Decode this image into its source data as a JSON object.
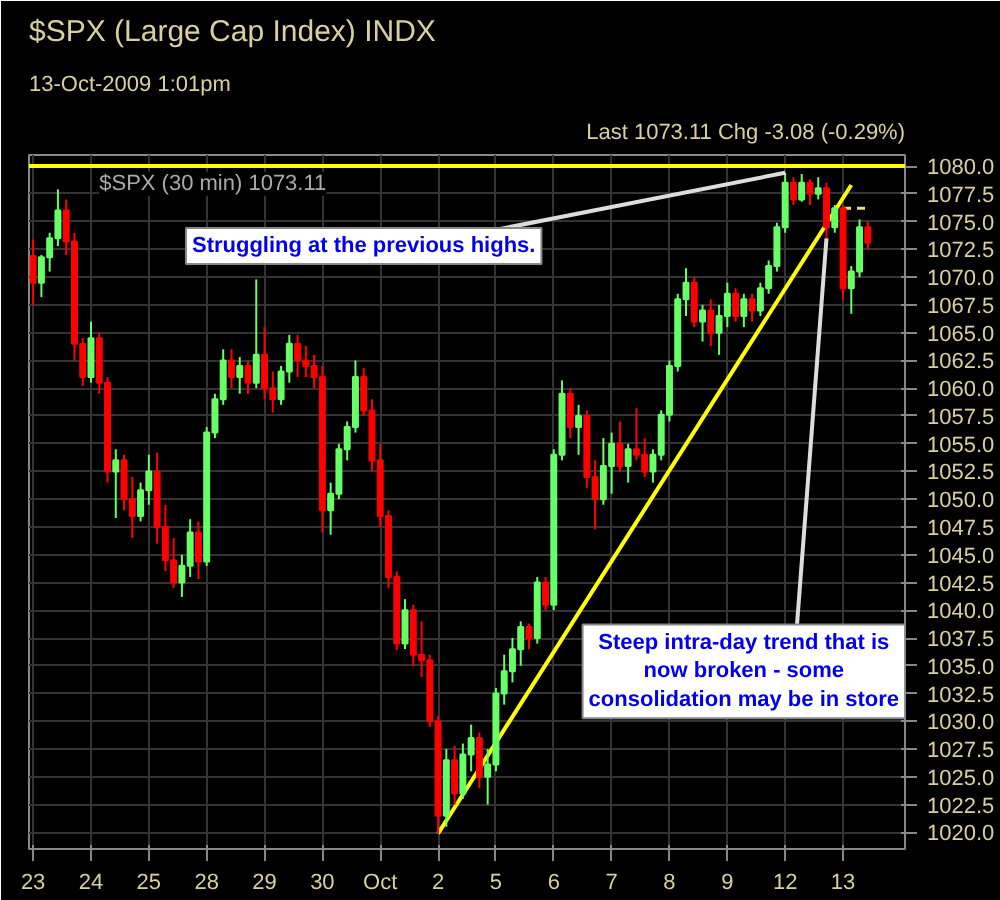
{
  "chart_data": {
    "type": "candlestick",
    "title": "$SPX (Large Cap Index) INDX",
    "subtitle": "13-Oct-2009 1:01pm",
    "annotations": [
      "Last 1073.11 Chg -3.08 (-0.29%)",
      "$SPX (30 min) 1073.11",
      "Struggling at the previous highs.",
      "Steep intra-day trend that is now broken - some consolidation may be in store"
    ],
    "categories": [
      "23",
      null,
      null,
      null,
      null,
      null,
      null,
      "24",
      null,
      null,
      null,
      null,
      null,
      null,
      "25",
      null,
      null,
      null,
      null,
      null,
      null,
      "28",
      null,
      null,
      null,
      null,
      null,
      null,
      "29",
      null,
      null,
      null,
      null,
      null,
      null,
      "30",
      null,
      null,
      null,
      null,
      null,
      null,
      "Oct",
      null,
      null,
      null,
      null,
      null,
      null,
      "2",
      null,
      null,
      null,
      null,
      null,
      null,
      "5",
      null,
      null,
      null,
      null,
      null,
      null,
      "6",
      null,
      null,
      null,
      null,
      null,
      null,
      "7",
      null,
      null,
      null,
      null,
      null,
      null,
      "8",
      null,
      null,
      null,
      null,
      null,
      null,
      "9",
      null,
      null,
      null,
      null,
      null,
      null,
      "12",
      null,
      null,
      null,
      null,
      null,
      null,
      "13",
      null,
      null,
      null
    ],
    "ohlc": [
      [
        1071.9,
        1073.4,
        1067.5,
        1069.5
      ],
      [
        1069.5,
        1072.0,
        1068.2,
        1071.8
      ],
      [
        1071.8,
        1074.0,
        1070.5,
        1073.5
      ],
      [
        1073.5,
        1077.9,
        1072.8,
        1076.0
      ],
      [
        1076.0,
        1077.0,
        1072.0,
        1073.2
      ],
      [
        1073.2,
        1074.0,
        1062.5,
        1064.0
      ],
      [
        1064.0,
        1064.5,
        1060.2,
        1061.0
      ],
      [
        1061.0,
        1066.0,
        1060.5,
        1064.5
      ],
      [
        1064.5,
        1065.0,
        1059.5,
        1060.5
      ],
      [
        1060.5,
        1061.0,
        1051.5,
        1052.5
      ],
      [
        1052.5,
        1054.5,
        1048.3,
        1053.5
      ],
      [
        1053.5,
        1054.0,
        1049.0,
        1050.0
      ],
      [
        1050.0,
        1052.0,
        1046.5,
        1048.5
      ],
      [
        1048.5,
        1051.5,
        1048.0,
        1050.8
      ],
      [
        1050.8,
        1054.0,
        1049.5,
        1052.5
      ],
      [
        1052.5,
        1054.2,
        1046.0,
        1047.5
      ],
      [
        1047.5,
        1049.5,
        1043.5,
        1044.5
      ],
      [
        1044.5,
        1046.5,
        1042.0,
        1042.5
      ],
      [
        1042.5,
        1045.0,
        1041.2,
        1044.0
      ],
      [
        1044.0,
        1048.2,
        1043.0,
        1047.0
      ],
      [
        1047.0,
        1048.0,
        1042.8,
        1044.4
      ],
      [
        1044.4,
        1056.5,
        1044.0,
        1056.0
      ],
      [
        1056.0,
        1059.5,
        1055.5,
        1059.0
      ],
      [
        1059.0,
        1063.5,
        1058.5,
        1062.5
      ],
      [
        1062.5,
        1063.5,
        1060.0,
        1061.0
      ],
      [
        1061.0,
        1062.8,
        1059.5,
        1062.0
      ],
      [
        1062.0,
        1062.5,
        1059.5,
        1060.5
      ],
      [
        1060.5,
        1069.8,
        1060.0,
        1063.0
      ],
      [
        1063.0,
        1065.5,
        1059.0,
        1060.0
      ],
      [
        1060.0,
        1061.5,
        1057.8,
        1059.0
      ],
      [
        1059.0,
        1062.0,
        1058.5,
        1061.5
      ],
      [
        1061.5,
        1064.8,
        1060.5,
        1064.0
      ],
      [
        1064.0,
        1064.8,
        1061.0,
        1062.5
      ],
      [
        1062.5,
        1063.8,
        1061.0,
        1062.0
      ],
      [
        1062.0,
        1063.0,
        1060.0,
        1061.0
      ],
      [
        1061.0,
        1062.0,
        1047.0,
        1049.0
      ],
      [
        1049.0,
        1051.5,
        1046.8,
        1050.5
      ],
      [
        1050.5,
        1055.0,
        1050.0,
        1054.5
      ],
      [
        1054.5,
        1057.0,
        1053.5,
        1056.5
      ],
      [
        1056.5,
        1062.5,
        1056.0,
        1061.0
      ],
      [
        1061.0,
        1061.8,
        1057.5,
        1058.0
      ],
      [
        1058.0,
        1059.0,
        1052.5,
        1053.5
      ],
      [
        1053.5,
        1055.0,
        1047.5,
        1048.5
      ],
      [
        1048.5,
        1049.0,
        1042.0,
        1043.0
      ],
      [
        1043.0,
        1043.5,
        1036.4,
        1037.0
      ],
      [
        1037.0,
        1041.0,
        1036.5,
        1040.0
      ],
      [
        1040.0,
        1040.5,
        1035.0,
        1036.0
      ],
      [
        1036.0,
        1039.0,
        1034.0,
        1035.5
      ],
      [
        1035.5,
        1036.0,
        1029.5,
        1030.0
      ],
      [
        1030.0,
        1030.5,
        1019.9,
        1021.5
      ],
      [
        1021.5,
        1027.5,
        1020.5,
        1026.5
      ],
      [
        1026.5,
        1027.8,
        1022.5,
        1023.5
      ],
      [
        1023.5,
        1028.0,
        1023.0,
        1027.0
      ],
      [
        1027.0,
        1029.7,
        1025.5,
        1028.5
      ],
      [
        1028.5,
        1029.0,
        1024.0,
        1025.0
      ],
      [
        1025.0,
        1027.5,
        1022.5,
        1026.1
      ],
      [
        1026.1,
        1033.0,
        1025.5,
        1032.5
      ],
      [
        1032.5,
        1036.0,
        1031.5,
        1034.5
      ],
      [
        1034.5,
        1037.5,
        1033.5,
        1036.5
      ],
      [
        1036.5,
        1039.0,
        1035.0,
        1038.5
      ],
      [
        1038.5,
        1038.8,
        1036.5,
        1037.5
      ],
      [
        1037.5,
        1043.0,
        1037.0,
        1042.5
      ],
      [
        1042.5,
        1043.0,
        1040.0,
        1040.5
      ],
      [
        1040.5,
        1054.5,
        1040.0,
        1054.0
      ],
      [
        1054.0,
        1060.7,
        1053.5,
        1059.5
      ],
      [
        1059.5,
        1060.0,
        1055.5,
        1056.5
      ],
      [
        1056.5,
        1058.5,
        1054.0,
        1057.5
      ],
      [
        1057.5,
        1058.0,
        1051.0,
        1052.0
      ],
      [
        1052.0,
        1053.5,
        1047.3,
        1050.0
      ],
      [
        1050.0,
        1055.5,
        1049.5,
        1053.0
      ],
      [
        1053.0,
        1056.0,
        1050.5,
        1055.0
      ],
      [
        1055.0,
        1057.0,
        1052.5,
        1053.0
      ],
      [
        1053.0,
        1055.0,
        1051.5,
        1054.5
      ],
      [
        1054.5,
        1058.2,
        1053.5,
        1054.0
      ],
      [
        1054.0,
        1055.5,
        1052.0,
        1052.5
      ],
      [
        1052.5,
        1054.5,
        1051.5,
        1054.0
      ],
      [
        1054.0,
        1058.0,
        1053.5,
        1057.6
      ],
      [
        1057.6,
        1062.5,
        1057.0,
        1062.0
      ],
      [
        1062.0,
        1068.5,
        1061.5,
        1068.0
      ],
      [
        1068.0,
        1070.8,
        1066.5,
        1069.5
      ],
      [
        1069.5,
        1070.0,
        1065.5,
        1066.0
      ],
      [
        1066.0,
        1067.5,
        1064.2,
        1067.0
      ],
      [
        1067.0,
        1068.0,
        1063.8,
        1065.0
      ],
      [
        1065.0,
        1067.5,
        1063.0,
        1066.5
      ],
      [
        1066.5,
        1069.5,
        1065.5,
        1068.5
      ],
      [
        1068.5,
        1069.0,
        1066.0,
        1066.5
      ],
      [
        1066.5,
        1068.5,
        1065.5,
        1068.0
      ],
      [
        1068.0,
        1068.5,
        1066.0,
        1067.0
      ],
      [
        1067.0,
        1069.5,
        1066.5,
        1069.0
      ],
      [
        1069.0,
        1071.5,
        1068.5,
        1071.0
      ],
      [
        1071.0,
        1074.9,
        1070.5,
        1074.5
      ],
      [
        1074.5,
        1079.4,
        1074.0,
        1078.5
      ],
      [
        1078.5,
        1079.0,
        1076.5,
        1077.0
      ],
      [
        1077.0,
        1079.3,
        1076.8,
        1078.5
      ],
      [
        1078.5,
        1078.8,
        1076.5,
        1077.5
      ],
      [
        1077.5,
        1079.0,
        1077.0,
        1078.0
      ],
      [
        1078.0,
        1078.5,
        1073.5,
        1074.5
      ],
      [
        1074.5,
        1076.5,
        1074.0,
        1076.2
      ],
      [
        1076.2,
        1076.5,
        1068.0,
        1069.0
      ],
      [
        1069.0,
        1071.0,
        1066.7,
        1070.5
      ],
      [
        1070.5,
        1075.2,
        1070.0,
        1074.5
      ],
      [
        1074.5,
        1075.0,
        1072.5,
        1073.1
      ]
    ],
    "colors": [
      "#ff0000",
      "#66ff66",
      "#66ff66",
      "#66ff66",
      "#ff0000",
      "#ff0000",
      "#ff0000",
      "#66ff66",
      "#ff0000",
      "#ff0000",
      "#66ff66",
      "#ff0000",
      "#ff0000",
      "#66ff66",
      "#66ff66",
      "#ff0000",
      "#ff0000",
      "#ff0000",
      "#66ff66",
      "#66ff66",
      "#ff0000",
      "#66ff66",
      "#66ff66",
      "#66ff66",
      "#ff0000",
      "#66ff66",
      "#ff0000",
      "#66ff66",
      "#ff0000",
      "#ff0000",
      "#66ff66",
      "#66ff66",
      "#ff0000",
      "#ff0000",
      "#ff0000",
      "#ff0000",
      "#66ff66",
      "#66ff66",
      "#66ff66",
      "#66ff66",
      "#ff0000",
      "#ff0000",
      "#ff0000",
      "#ff0000",
      "#ff0000",
      "#66ff66",
      "#ff0000",
      "#ff0000",
      "#ff0000",
      "#ff0000",
      "#66ff66",
      "#ff0000",
      "#66ff66",
      "#66ff66",
      "#ff0000",
      "#66ff66",
      "#66ff66",
      "#66ff66",
      "#66ff66",
      "#66ff66",
      "#ff0000",
      "#66ff66",
      "#ff0000",
      "#66ff66",
      "#66ff66",
      "#ff0000",
      "#66ff66",
      "#ff0000",
      "#ff0000",
      "#66ff66",
      "#66ff66",
      "#ff0000",
      "#66ff66",
      "#ff0000",
      "#ff0000",
      "#66ff66",
      "#66ff66",
      "#66ff66",
      "#66ff66",
      "#66ff66",
      "#ff0000",
      "#66ff66",
      "#ff0000",
      "#66ff66",
      "#66ff66",
      "#ff0000",
      "#66ff66",
      "#ff0000",
      "#66ff66",
      "#66ff66",
      "#66ff66",
      "#66ff66",
      "#ff0000",
      "#66ff66",
      "#ff0000",
      "#66ff66",
      "#ff0000",
      "#66ff66",
      "#ff0000",
      "#66ff66",
      "#66ff66",
      "#ff0000"
    ],
    "series": [
      {
        "type": "line",
        "color": "#ffff00",
        "values": [
          null,
          null,
          null,
          null,
          null,
          null,
          null,
          null,
          null,
          null,
          null,
          null,
          null,
          null,
          null,
          null,
          null,
          null,
          null,
          null,
          null,
          null,
          null,
          null,
          null,
          null,
          null,
          null,
          null,
          null,
          null,
          null,
          null,
          null,
          null,
          null,
          null,
          null,
          null,
          null,
          null,
          null,
          null,
          null,
          null,
          null,
          null,
          null,
          null,
          1019.9,
          null,
          null,
          null,
          null,
          null,
          null,
          null,
          null,
          null,
          null,
          null,
          null,
          null,
          null,
          null,
          null,
          null,
          null,
          null,
          null,
          null,
          null,
          null,
          null,
          null,
          null,
          null,
          null,
          null,
          null,
          null,
          null,
          null,
          null,
          null,
          null,
          null,
          null,
          null,
          null,
          null,
          null,
          null,
          null,
          null,
          null,
          null,
          null,
          null,
          1078.3,
          null,
          null
        ]
      },
      {
        "type": "line",
        "color": "#e8e080",
        "line_style": "dashed",
        "values": [
          null,
          null,
          null,
          null,
          null,
          null,
          null,
          null,
          null,
          null,
          null,
          null,
          null,
          null,
          null,
          null,
          null,
          null,
          null,
          null,
          null,
          null,
          null,
          null,
          null,
          null,
          null,
          null,
          null,
          null,
          null,
          null,
          null,
          null,
          null,
          null,
          null,
          null,
          null,
          null,
          null,
          null,
          null,
          null,
          null,
          null,
          null,
          null,
          null,
          null,
          null,
          null,
          null,
          null,
          null,
          null,
          null,
          null,
          null,
          null,
          null,
          null,
          null,
          null,
          null,
          null,
          null,
          null,
          null,
          null,
          null,
          null,
          null,
          null,
          null,
          null,
          null,
          null,
          null,
          null,
          null,
          null,
          null,
          null,
          null,
          null,
          null,
          null,
          null,
          null,
          null,
          null,
          null,
          null,
          null,
          null,
          null,
          null,
          1076.2,
          1076.2,
          1076.2,
          1076.2
        ]
      }
    ],
    "ref_lines": [
      {
        "axis": "y",
        "value": 1080,
        "color": "#ffff00"
      }
    ],
    "ylim": [
      1018.5,
      1081
    ],
    "yticks": [
      {
        "value": 1020,
        "label": "1020.0"
      },
      {
        "value": 1022.5,
        "label": "1022.5"
      },
      {
        "value": 1025,
        "label": "1025.0"
      },
      {
        "value": 1027.5,
        "label": "1027.5"
      },
      {
        "value": 1030,
        "label": "1030.0"
      },
      {
        "value": 1032.5,
        "label": "1032.5"
      },
      {
        "value": 1035,
        "label": "1035.0"
      },
      {
        "value": 1037.5,
        "label": "1037.5"
      },
      {
        "value": 1040,
        "label": "1040.0"
      },
      {
        "value": 1042.5,
        "label": "1042.5"
      },
      {
        "value": 1045,
        "label": "1045.0"
      },
      {
        "value": 1047.5,
        "label": "1047.5"
      },
      {
        "value": 1050,
        "label": "1050.0"
      },
      {
        "value": 1052.5,
        "label": "1052.5"
      },
      {
        "value": 1055,
        "label": "1055.0"
      },
      {
        "value": 1057.5,
        "label": "1057.5"
      },
      {
        "value": 1060,
        "label": "1060.0"
      },
      {
        "value": 1062.5,
        "label": "1062.5"
      },
      {
        "value": 1065,
        "label": "1065.0"
      },
      {
        "value": 1067.5,
        "label": "1067.5"
      },
      {
        "value": 1070,
        "label": "1070.0"
      },
      {
        "value": 1072.5,
        "label": "1072.5"
      },
      {
        "value": 1075,
        "label": "1075.0"
      },
      {
        "value": 1077.5,
        "label": "1077.5"
      },
      {
        "value": 1080,
        "label": "1080.0"
      }
    ],
    "grid": true
  }
}
